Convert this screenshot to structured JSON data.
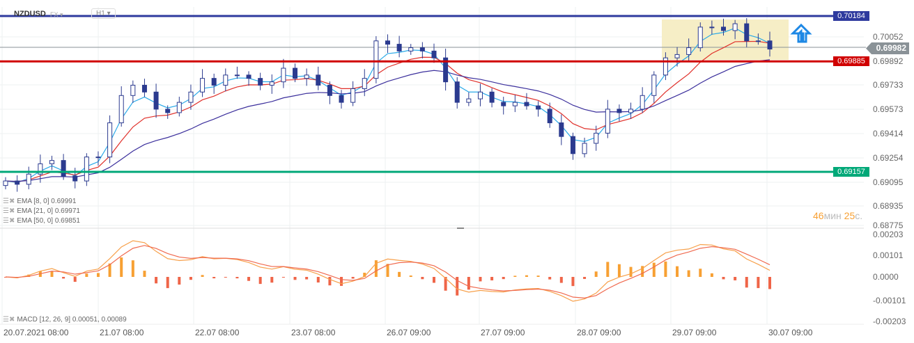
{
  "header": {
    "symbol": "NZDUSD",
    "market": "FX",
    "timeframe": "H1"
  },
  "indicators": [
    {
      "label": "EMA [8, 0] 0.69991",
      "color": "#29a9e8"
    },
    {
      "label": "EMA [21, 0] 0.69971",
      "color": "#e0302a"
    },
    {
      "label": "EMA [50, 0] 0.69851",
      "color": "#3b2f9c"
    }
  ],
  "macd_label": "MACD [12, 26, 9] 0.00051,  0.00089",
  "levels": [
    {
      "price": 0.70184,
      "label": "0.70184",
      "color": "#2e3a9e"
    },
    {
      "price": 0.69885,
      "label": "0.69885",
      "color": "#d00000"
    },
    {
      "price": 0.69157,
      "label": "0.69157",
      "color": "#00a878"
    }
  ],
  "current_price": {
    "price": 0.69982,
    "label": "0.69982"
  },
  "countdown": {
    "min": "46",
    "min_unit": "мин",
    "sec": "25",
    "sec_unit": "с."
  },
  "colors": {
    "up": "#ffffff",
    "down": "#2b3a8f",
    "candle_border": "#2b3a8f",
    "macd_pos": "#f7a033",
    "macd_neg": "#ef6548",
    "macd_line": "#f7a04a",
    "signal_line": "#f06a4f",
    "zone": "#f6eec6",
    "arrow": "#1e88e5"
  },
  "chart_data": {
    "type": "candlestick",
    "title": "NZDUSD H1",
    "y_ticks": [
      "0.70052",
      "0.69892",
      "0.69733",
      "0.69573",
      "0.69414",
      "0.69254",
      "0.69095",
      "0.68935",
      "0.68775"
    ],
    "macd_ticks": [
      "0.00203",
      "0.00101",
      "0.0000",
      "-0.00101",
      "-0.00203"
    ],
    "x_ticks": [
      "20.07.2021  08:00",
      "21.07  08:00",
      "22.07  08:00",
      "23.07  08:00",
      "26.07  09:00",
      "27.07  09:00",
      "28.07  09:00",
      "29.07  09:00",
      "30.07  09:00"
    ],
    "closes": [
      0.69097,
      0.69075,
      0.69142,
      0.6921,
      0.69232,
      0.69129,
      0.69097,
      0.69255,
      0.69255,
      0.6948,
      0.6966,
      0.69728,
      0.69683,
      0.6957,
      0.69547,
      0.69615,
      0.69683,
      0.69773,
      0.69728,
      0.69795,
      0.69795,
      0.69773,
      0.69728,
      0.6975,
      0.6984,
      0.69773,
      0.69795,
      0.69728,
      0.6966,
      0.69615,
      0.69705,
      0.69773,
      0.7002,
      0.69998,
      0.69953,
      0.69975,
      0.69953,
      0.69908,
      0.6975,
      0.69615,
      0.69638,
      0.69683,
      0.69615,
      0.69592,
      0.69615,
      0.69592,
      0.6957,
      0.6948,
      0.6939,
      0.69277,
      0.69345,
      0.69412,
      0.6957,
      0.69547,
      0.6957,
      0.6966,
      0.69795,
      0.69908,
      0.6993,
      0.69975,
      0.70111,
      0.70111,
      0.70088,
      0.70133,
      0.7002,
      0.7002,
      0.69966
    ]
  }
}
